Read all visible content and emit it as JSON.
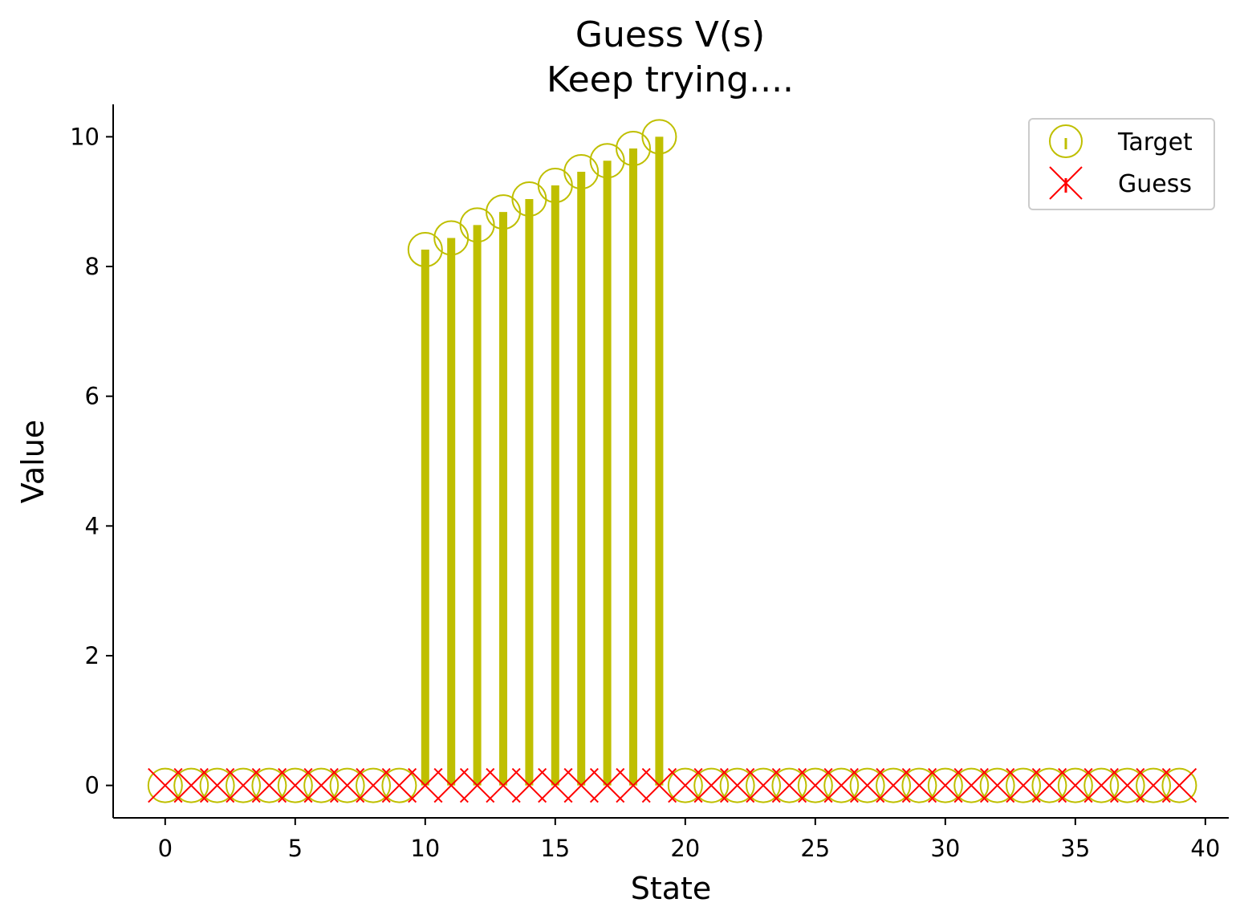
{
  "colors": {
    "target": "#bfbf00",
    "guess": "#ff0000",
    "axis": "#000000",
    "legend_border": "#cccccc"
  },
  "chart_data": {
    "type": "stem",
    "title_lines": [
      "Guess V(s)",
      "Keep trying...."
    ],
    "xlabel": "State",
    "ylabel": "Value",
    "xlim": [
      -2,
      40.9
    ],
    "ylim": [
      -0.5,
      10.5
    ],
    "xticks": [
      0,
      5,
      10,
      15,
      20,
      25,
      30,
      35,
      40
    ],
    "yticks": [
      0,
      2,
      4,
      6,
      8,
      10
    ],
    "legend": {
      "position": "upper-right",
      "entries": [
        "Target",
        "Guess"
      ]
    },
    "series": [
      {
        "name": "Target",
        "marker": "circle",
        "x": [
          0,
          1,
          2,
          3,
          4,
          5,
          6,
          7,
          8,
          9,
          10,
          11,
          12,
          13,
          14,
          15,
          16,
          17,
          18,
          19,
          20,
          21,
          22,
          23,
          24,
          25,
          26,
          27,
          28,
          29,
          30,
          31,
          32,
          33,
          34,
          35,
          36,
          37,
          38,
          39
        ],
        "values": [
          0,
          0,
          0,
          0,
          0,
          0,
          0,
          0,
          0,
          0,
          8.26,
          8.44,
          8.64,
          8.84,
          9.04,
          9.25,
          9.46,
          9.63,
          9.82,
          10.0,
          0,
          0,
          0,
          0,
          0,
          0,
          0,
          0,
          0,
          0,
          0,
          0,
          0,
          0,
          0,
          0,
          0,
          0,
          0,
          0
        ]
      },
      {
        "name": "Guess",
        "marker": "x",
        "x": [
          0,
          1,
          2,
          3,
          4,
          5,
          6,
          7,
          8,
          9,
          10,
          11,
          12,
          13,
          14,
          15,
          16,
          17,
          18,
          19,
          20,
          21,
          22,
          23,
          24,
          25,
          26,
          27,
          28,
          29,
          30,
          31,
          32,
          33,
          34,
          35,
          36,
          37,
          38,
          39
        ],
        "values": [
          0,
          0,
          0,
          0,
          0,
          0,
          0,
          0,
          0,
          0,
          0,
          0,
          0,
          0,
          0,
          0,
          0,
          0,
          0,
          0,
          0,
          0,
          0,
          0,
          0,
          0,
          0,
          0,
          0,
          0,
          0,
          0,
          0,
          0,
          0,
          0,
          0,
          0,
          0,
          0
        ]
      }
    ]
  }
}
